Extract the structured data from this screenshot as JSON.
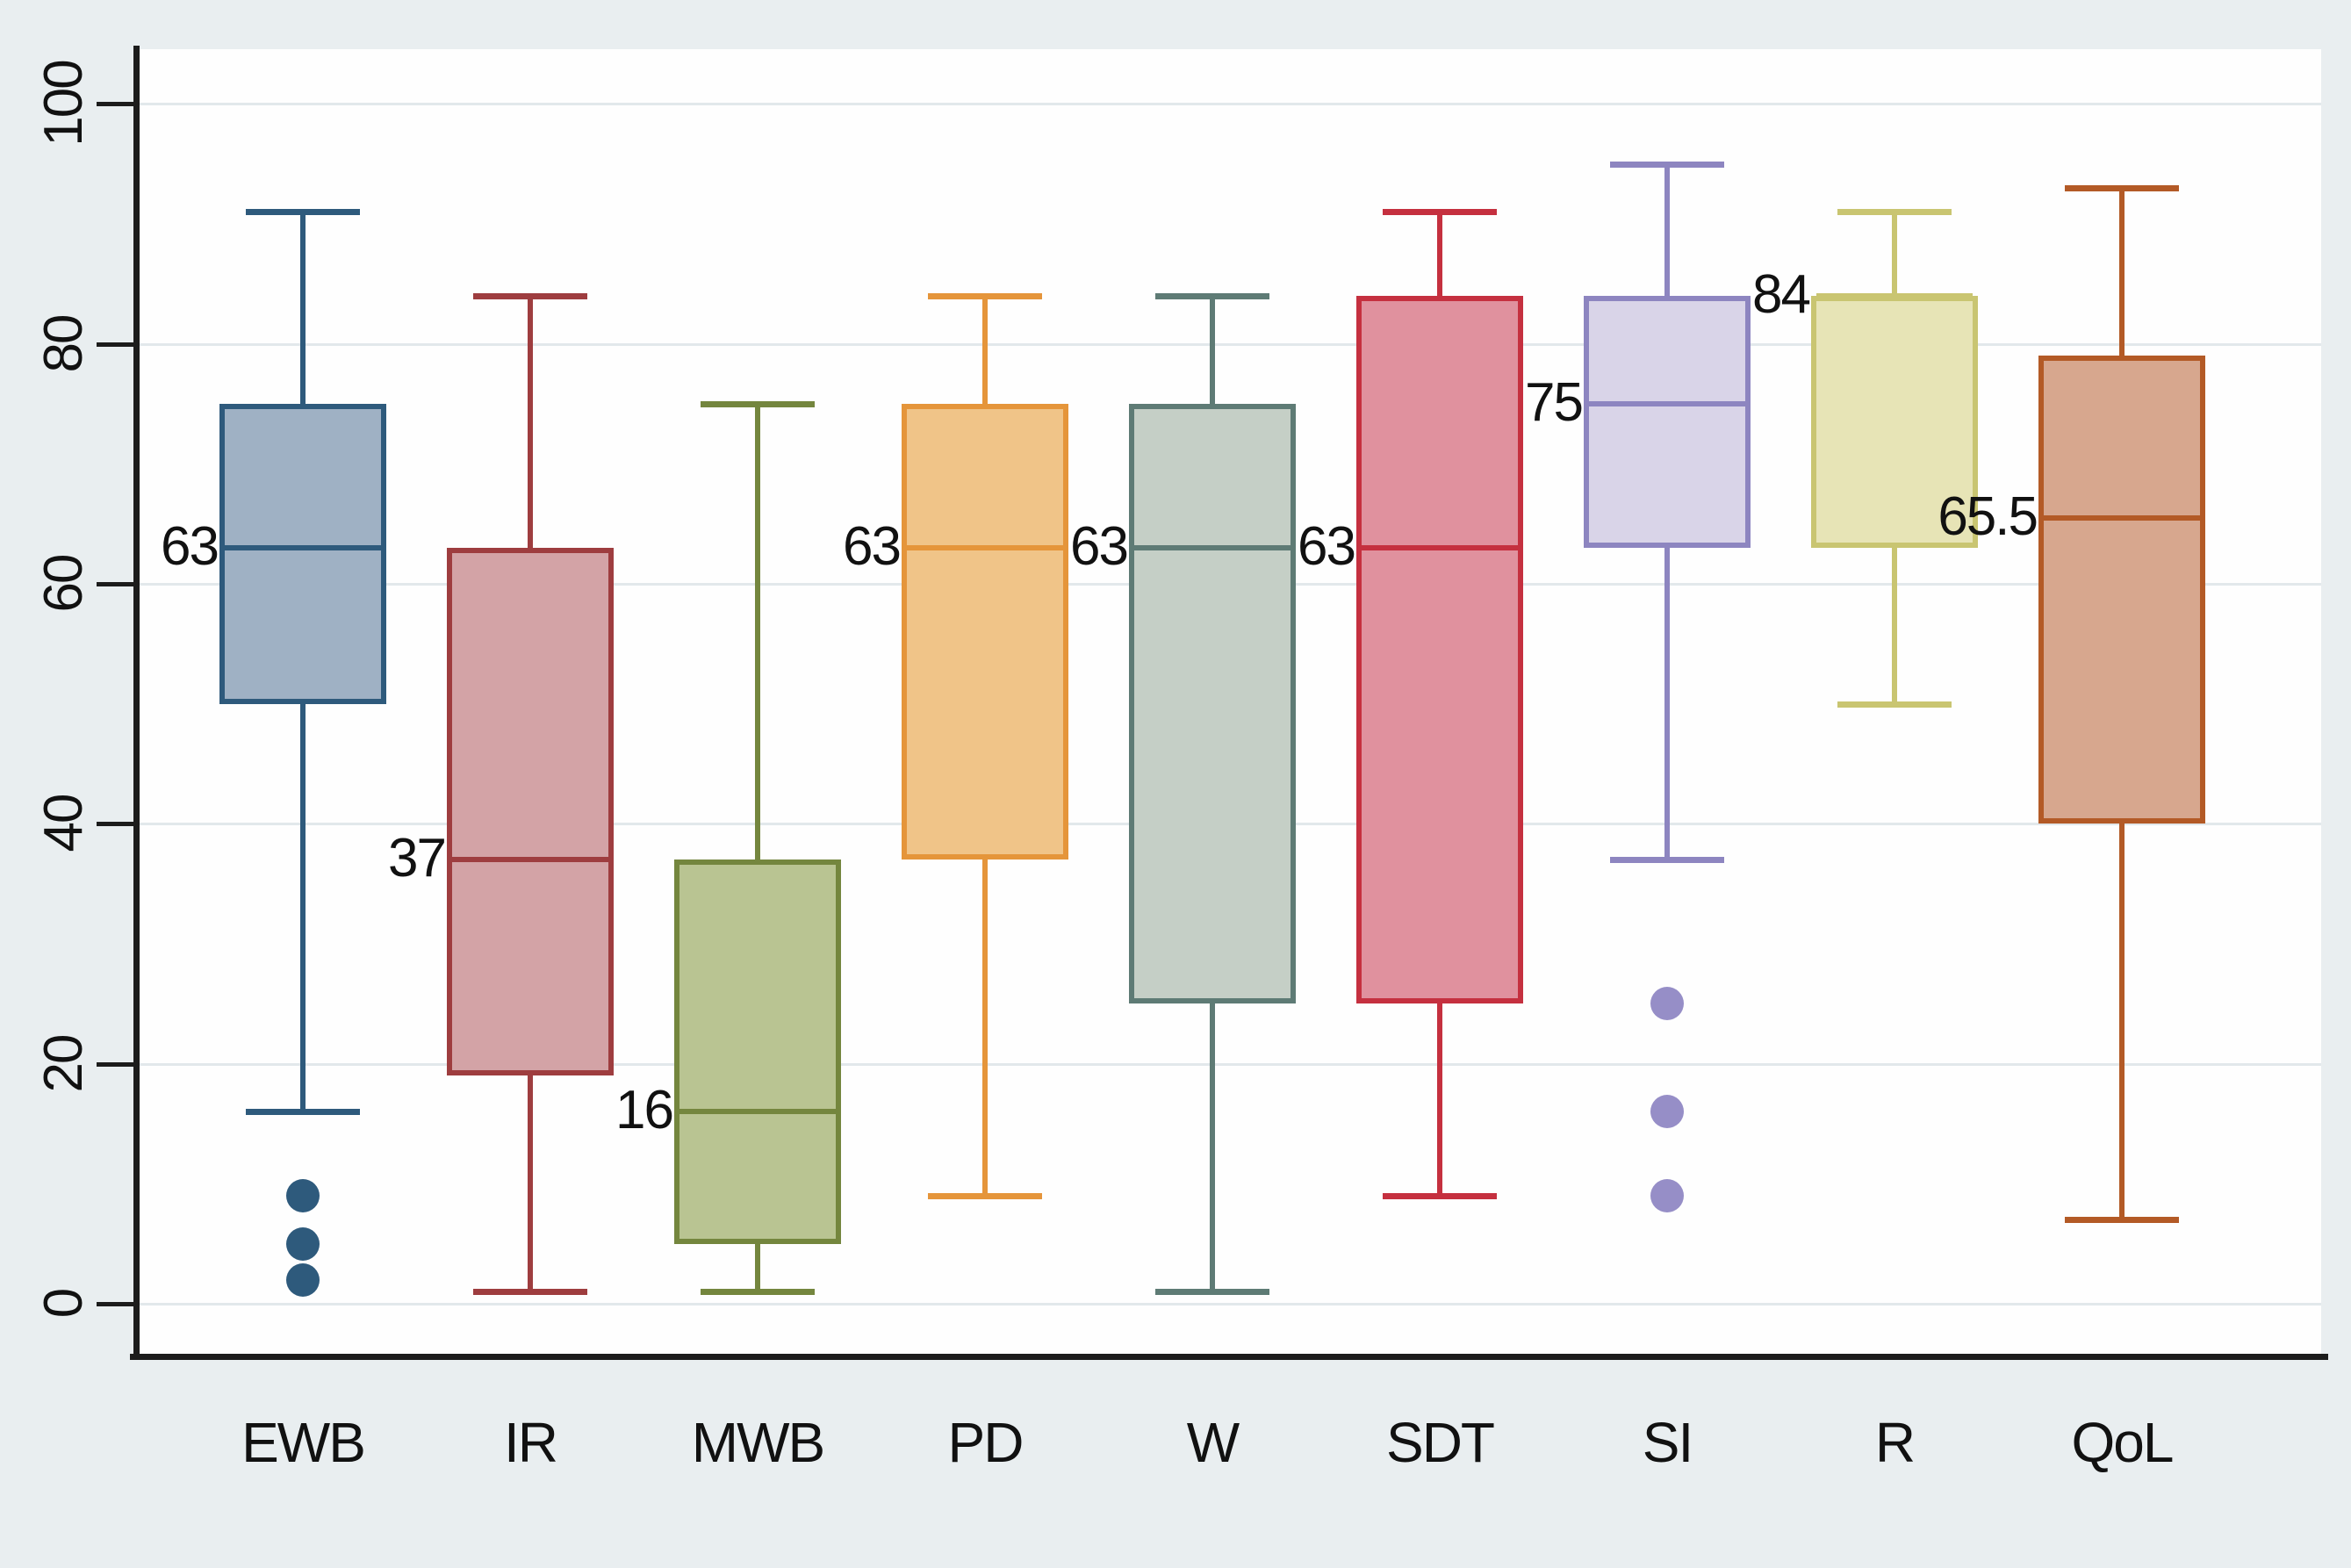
{
  "chart_data": {
    "type": "box",
    "title": "",
    "xlabel": "",
    "ylabel": "",
    "ylim": [
      0,
      100
    ],
    "yticks": [
      "0",
      "20",
      "40",
      "60",
      "80",
      "100"
    ],
    "ytick_values": [
      0,
      20,
      40,
      60,
      80,
      100
    ],
    "grid": true,
    "legend_position": "none",
    "categories": [
      "EWB",
      "IR",
      "MWB",
      "PD",
      "W",
      "SDT",
      "SI",
      "R",
      "QoL"
    ],
    "series": [
      {
        "name": "EWB",
        "whisker_low": 16,
        "q1": 50,
        "median": 63,
        "q3": 75,
        "whisker_high": 91,
        "outliers": [
          9,
          5,
          2
        ],
        "median_label": "63",
        "fill": "#9fb1c4",
        "stroke": "#2e5a7c"
      },
      {
        "name": "IR",
        "whisker_low": 1,
        "q1": 19,
        "median": 37,
        "q3": 63,
        "whisker_high": 84,
        "outliers": [],
        "median_label": "37",
        "fill": "#d3a3a6",
        "stroke": "#9e3d3f"
      },
      {
        "name": "MWB",
        "whisker_low": 1,
        "q1": 5,
        "median": 16,
        "q3": 37,
        "whisker_high": 75,
        "outliers": [],
        "median_label": "16",
        "fill": "#b9c492",
        "stroke": "#74863e"
      },
      {
        "name": "PD",
        "whisker_low": 9,
        "q1": 37,
        "median": 63,
        "q3": 75,
        "whisker_high": 84,
        "outliers": [],
        "median_label": "63",
        "fill": "#f0c488",
        "stroke": "#e5953a"
      },
      {
        "name": "W",
        "whisker_low": 1,
        "q1": 25,
        "median": 63,
        "q3": 75,
        "whisker_high": 84,
        "outliers": [],
        "median_label": "63",
        "fill": "#c5cfc6",
        "stroke": "#5e7b75"
      },
      {
        "name": "SDT",
        "whisker_low": 9,
        "q1": 25,
        "median": 63,
        "q3": 84,
        "whisker_high": 91,
        "outliers": [],
        "median_label": "63",
        "fill": "#e0919e",
        "stroke": "#c5303f"
      },
      {
        "name": "SI",
        "whisker_low": 37,
        "q1": 63,
        "median": 75,
        "q3": 84,
        "whisker_high": 95,
        "outliers": [
          25,
          16,
          9
        ],
        "median_label": "75",
        "fill": "#d9d4e8",
        "stroke": "#8d85c0",
        "outlier_color": "#968ec7"
      },
      {
        "name": "R",
        "whisker_low": 50,
        "q1": 63,
        "median": 84,
        "q3": 84,
        "whisker_high": 91,
        "outliers": [],
        "median_label": "84",
        "fill": "#e7e4b6",
        "stroke": "#c9c571"
      },
      {
        "name": "QoL",
        "whisker_low": 7,
        "q1": 40,
        "median": 65.5,
        "q3": 79,
        "whisker_high": 93,
        "outliers": [],
        "median_label": "65.5",
        "fill": "#d7a78e",
        "stroke": "#b35a26"
      }
    ],
    "colors": {
      "page_background": "#e9eef0",
      "plot_background": "#fefefe",
      "axis": "#1c1c1c",
      "gridline": "#e2e8eb",
      "text": "#111111"
    }
  }
}
